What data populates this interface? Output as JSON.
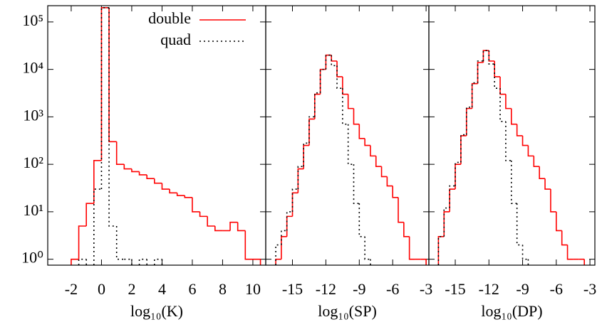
{
  "chart_data": [
    {
      "type": "histogram",
      "xlabel": "log₁₀(K)",
      "xlim": [
        -3.55,
        10.85
      ],
      "ylim": [
        0.75,
        220000
      ],
      "log_y": true,
      "legend": "top",
      "xticks": [
        -2,
        0,
        2,
        4,
        6,
        8,
        10
      ],
      "yticks": [
        {
          "value": 1,
          "label": "10⁰"
        },
        {
          "value": 10,
          "label": "10¹"
        },
        {
          "value": 100,
          "label": "10²"
        },
        {
          "value": 1000,
          "label": "10³"
        },
        {
          "value": 10000,
          "label": "10⁴"
        },
        {
          "value": 100000,
          "label": "10⁵"
        }
      ],
      "bins": [
        -2,
        -1.5,
        -1,
        -0.5,
        0,
        0.5,
        1,
        1.5,
        2,
        2.5,
        3,
        3.5,
        4,
        4.5,
        5,
        5.5,
        6,
        6.5,
        7,
        7.5,
        8,
        8.5,
        9,
        9.5,
        10,
        10.5
      ],
      "series": [
        {
          "name": "double",
          "color": "#ff0000",
          "style": "solid",
          "values": [
            1,
            5,
            15,
            120,
            200000,
            300,
            100,
            80,
            70,
            60,
            50,
            40,
            30,
            25,
            22,
            20,
            10,
            8,
            5,
            4,
            4,
            6,
            4,
            1,
            1
          ]
        },
        {
          "name": "quad",
          "color": "#000000",
          "style": "dotted",
          "values": [
            null,
            1,
            null,
            30,
            200000,
            5,
            1,
            1,
            null,
            1,
            null,
            1,
            null,
            null,
            null,
            null,
            null,
            null,
            null,
            null,
            null,
            null,
            null,
            null,
            null
          ]
        }
      ]
    },
    {
      "type": "histogram",
      "xlabel": "log₁₀(SP)",
      "xlim": [
        -17.4,
        -2.75
      ],
      "ylim": [
        0.75,
        220000
      ],
      "log_y": true,
      "xticks": [
        -15,
        -12,
        -9,
        -6,
        -3
      ],
      "bins": [
        -17,
        -16.5,
        -16,
        -15.5,
        -15,
        -14.5,
        -14,
        -13.5,
        -13,
        -12.5,
        -12,
        -11.5,
        -11,
        -10.5,
        -10,
        -9.5,
        -9,
        -8.5,
        -8,
        -7.5,
        -7,
        -6.5,
        -6,
        -5.5,
        -5,
        -4.5,
        -4,
        -3.5,
        -3
      ],
      "series": [
        {
          "color": "#ff0000",
          "style": "solid",
          "values": [
            null,
            1,
            3,
            8,
            25,
            80,
            250,
            900,
            3000,
            10000,
            20000,
            15000,
            7000,
            3000,
            1500,
            700,
            350,
            250,
            150,
            90,
            55,
            35,
            20,
            6,
            3,
            1,
            1,
            1
          ]
        },
        {
          "color": "#000000",
          "style": "dotted",
          "values": [
            null,
            2,
            4,
            10,
            30,
            90,
            280,
            1000,
            3200,
            10000,
            20000,
            12000,
            4000,
            700,
            100,
            15,
            3,
            1,
            null,
            null,
            null,
            null,
            null,
            null,
            null,
            null,
            null,
            null
          ]
        }
      ]
    },
    {
      "type": "histogram",
      "xlabel": "log₁₀(DP)",
      "xlim": [
        -17.35,
        -2.56
      ],
      "ylim": [
        0.75,
        220000
      ],
      "log_y": true,
      "xticks": [
        -15,
        -12,
        -9,
        -6,
        -3
      ],
      "bins": [
        -17,
        -16.5,
        -16,
        -15.5,
        -15,
        -14.5,
        -14,
        -13.5,
        -13,
        -12.5,
        -12,
        -11.5,
        -11,
        -10.5,
        -10,
        -9.5,
        -9,
        -8.5,
        -8,
        -7.5,
        -7,
        -6.5,
        -6,
        -5.5,
        -5,
        -4.5,
        -4,
        -3.5,
        -3
      ],
      "series": [
        {
          "color": "#ff0000",
          "style": "solid",
          "values": [
            null,
            3,
            10,
            30,
            100,
            400,
            1500,
            5000,
            14000,
            25000,
            15000,
            7000,
            3000,
            1500,
            700,
            400,
            250,
            150,
            90,
            50,
            30,
            10,
            4,
            2,
            1,
            1,
            1,
            null
          ]
        },
        {
          "color": "#000000",
          "style": "dotted",
          "values": [
            null,
            3,
            12,
            35,
            110,
            420,
            1600,
            5200,
            15000,
            25000,
            13000,
            4000,
            800,
            120,
            15,
            2,
            1,
            null,
            null,
            null,
            null,
            null,
            null,
            null,
            null,
            null,
            null,
            null
          ]
        }
      ]
    }
  ]
}
